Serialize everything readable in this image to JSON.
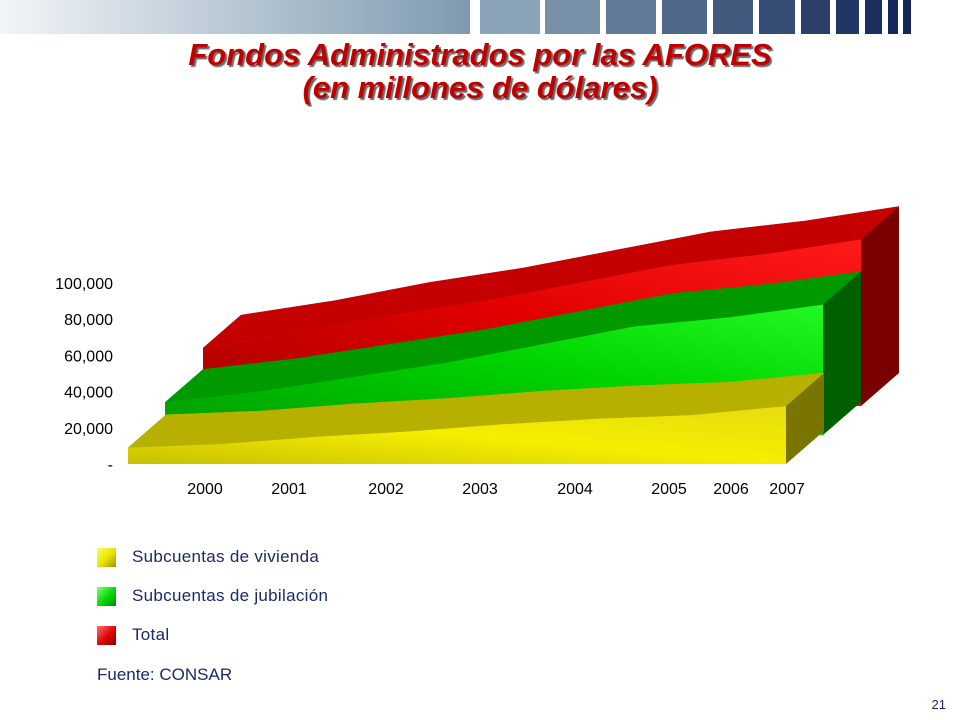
{
  "slide": {
    "title_line1": "Fondos Administrados por las AFORES",
    "title_line2": "(en millones de dólares)",
    "source": "Fuente: CONSAR",
    "page_number": "21"
  },
  "colors": {
    "title": "#c00000",
    "text": "#1a2a6a",
    "vivienda": "#e8e000",
    "jubilacion": "#00d800",
    "total": "#e00000"
  },
  "legend": [
    {
      "label": "Subcuentas de vivienda",
      "color": "#e8e000"
    },
    {
      "label": "Subcuentas de jubilación",
      "color": "#00d800"
    },
    {
      "label": "Total",
      "color": "#e00000"
    }
  ],
  "chart_data": {
    "type": "area",
    "categories": [
      "2000",
      "2001",
      "2002",
      "2003",
      "2004",
      "2005",
      "2006",
      "2007"
    ],
    "yticks": [
      "-",
      "20,000",
      "40,000",
      "60,000",
      "80,000",
      "100,000"
    ],
    "ylim": [
      0,
      100000
    ],
    "series": [
      {
        "name": "Subcuentas de vivienda",
        "values": [
          9000,
          11000,
          15000,
          18000,
          22000,
          25000,
          27000,
          32000
        ],
        "color": "#e8e000"
      },
      {
        "name": "Subcuentas de jubilación",
        "values": [
          18000,
          24000,
          32000,
          40000,
          50000,
          60000,
          65000,
          72000
        ],
        "color": "#00d800"
      },
      {
        "name": "Total",
        "values": [
          32000,
          40000,
          50000,
          58000,
          68000,
          78000,
          84000,
          92000
        ],
        "color": "#e00000"
      }
    ]
  }
}
